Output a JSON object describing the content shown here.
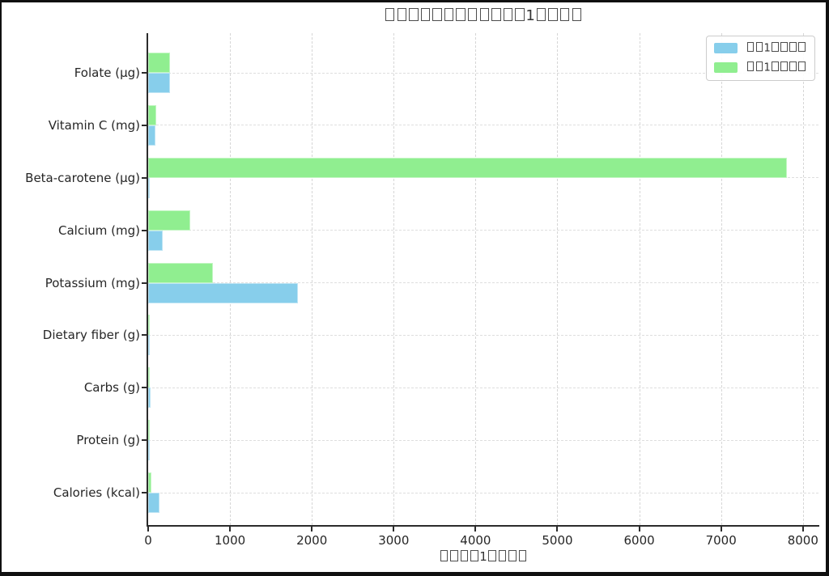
{
  "chart_data": {
    "type": "bar",
    "orientation": "horizontal",
    "title": "▯▯▯▯▯▯▯▯▯▯▯▯1▯▯▯▯",
    "xlabel": "▯▯▯▯1▯▯▯▯",
    "ylabel": "",
    "categories": [
      "Folate (μg)",
      "Vitamin C (mg)",
      "Beta-carotene (μg)",
      "Calcium (mg)",
      "Potassium (mg)",
      "Dietary fiber (g)",
      "Carbs (g)",
      "Protein (g)",
      "Calories (kcal)"
    ],
    "series": [
      {
        "name": "▯▯1▯▯▯▯",
        "color": "#87CEEB",
        "values": [
          265,
          90,
          5,
          180,
          1830,
          3,
          27,
          2,
          140
        ]
      },
      {
        "name": "▯▯1▯▯▯▯",
        "color": "#90EE90",
        "values": [
          270,
          100,
          7800,
          510,
          790,
          5,
          8,
          4,
          35
        ]
      }
    ],
    "xlim": [
      0,
      8190
    ],
    "xticks": [
      0,
      1000,
      2000,
      3000,
      4000,
      5000,
      6000,
      7000,
      8000
    ],
    "grid": true,
    "grid_style": "dashed",
    "legend_position": "upper right",
    "colors": {
      "blue": "#87CEEB",
      "green": "#90EE90",
      "spine": "#2b2b2b",
      "grid": "#d6d6d6"
    }
  }
}
